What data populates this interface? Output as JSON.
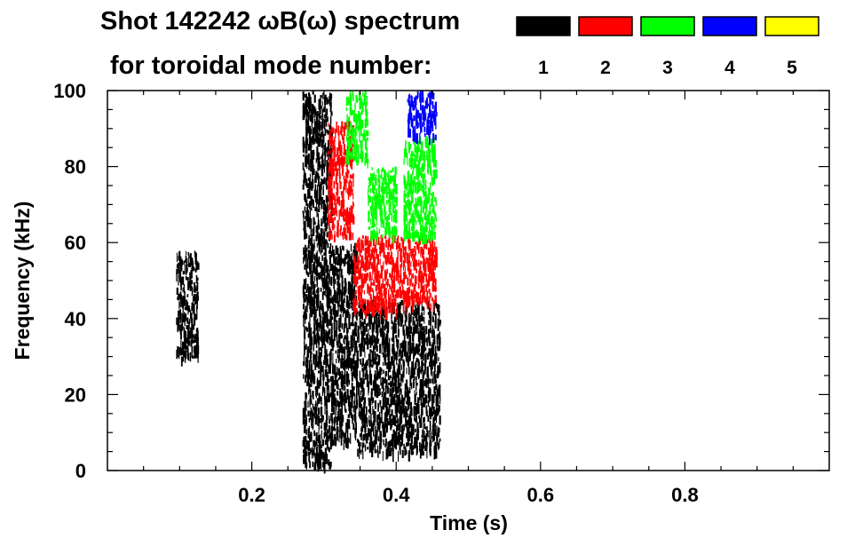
{
  "title": {
    "line1": "Shot 142242 ωB(ω) spectrum",
    "line2": "for toroidal mode number:"
  },
  "legend": [
    {
      "label": "1",
      "color": "#000000"
    },
    {
      "label": "2",
      "color": "#ff0000"
    },
    {
      "label": "3",
      "color": "#00ff00"
    },
    {
      "label": "4",
      "color": "#0000ff"
    },
    {
      "label": "5",
      "color": "#ffff00"
    }
  ],
  "chart_data": {
    "type": "heatmap",
    "title": "Shot 142242 ωB(ω) spectrum",
    "xlabel": "Time (s)",
    "ylabel": "Frequency (kHz)",
    "xlim": [
      0.0,
      1.0
    ],
    "ylim": [
      0,
      100
    ],
    "x_ticks": [
      0.2,
      0.4,
      0.6,
      0.8
    ],
    "x_tick_labels": [
      "0.2",
      "0.4",
      "0.6",
      "0.8"
    ],
    "y_ticks": [
      0,
      20,
      40,
      60,
      80,
      100
    ],
    "y_tick_labels": [
      "0",
      "20",
      "40",
      "60",
      "80",
      "100"
    ],
    "grid": false,
    "series": [
      {
        "name": "1",
        "color": "#000000",
        "regions": [
          {
            "t": [
              0.095,
              0.125
            ],
            "f": [
              30,
              58
            ]
          },
          {
            "t": [
              0.27,
              0.31
            ],
            "f": [
              2,
              100
            ]
          },
          {
            "t": [
              0.31,
              0.345
            ],
            "f": [
              8,
              60
            ]
          },
          {
            "t": [
              0.345,
              0.46
            ],
            "f": [
              5,
              45
            ]
          }
        ]
      },
      {
        "name": "2",
        "color": "#ff0000",
        "regions": [
          {
            "t": [
              0.305,
              0.34
            ],
            "f": [
              62,
              92
            ]
          },
          {
            "t": [
              0.34,
              0.4
            ],
            "f": [
              42,
              62
            ]
          },
          {
            "t": [
              0.4,
              0.455
            ],
            "f": [
              44,
              62
            ]
          }
        ]
      },
      {
        "name": "3",
        "color": "#00ff00",
        "regions": [
          {
            "t": [
              0.33,
              0.36
            ],
            "f": [
              82,
              100
            ]
          },
          {
            "t": [
              0.36,
              0.4
            ],
            "f": [
              62,
              80
            ]
          },
          {
            "t": [
              0.41,
              0.455
            ],
            "f": [
              62,
              88
            ]
          }
        ]
      },
      {
        "name": "4",
        "color": "#0000ff",
        "regions": [
          {
            "t": [
              0.415,
              0.455
            ],
            "f": [
              88,
              100
            ]
          }
        ]
      },
      {
        "name": "5",
        "color": "#ffff00",
        "regions": []
      }
    ]
  }
}
